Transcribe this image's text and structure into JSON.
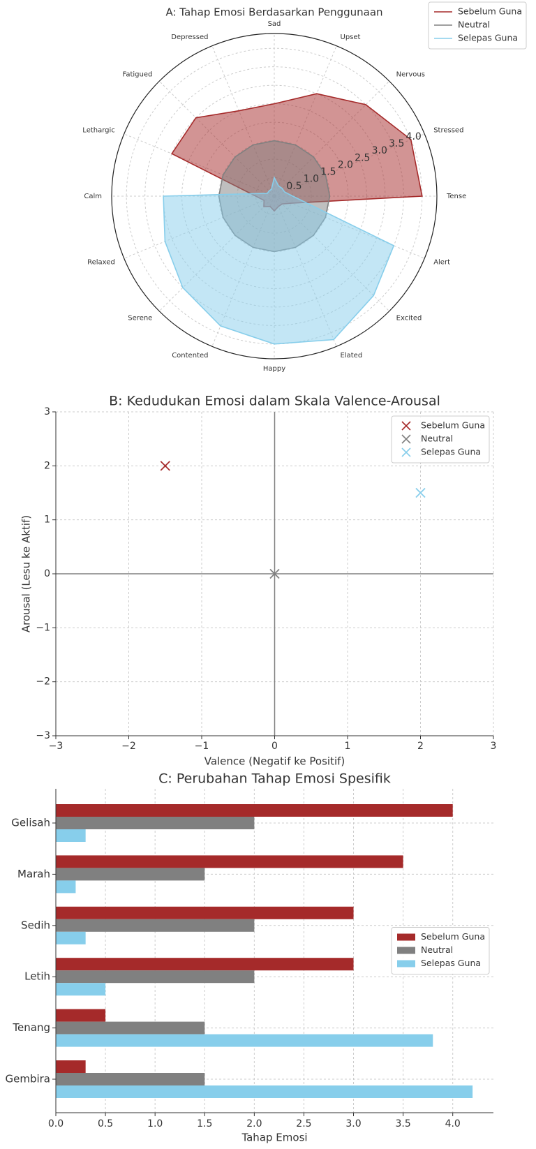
{
  "chart_data": [
    {
      "type": "radar",
      "title": "A: Tahap Emosi Berdasarkan Penggunaan",
      "categories": [
        "Tense",
        "Stressed",
        "Nervous",
        "Upset",
        "Sad",
        "Depressed",
        "Fatigued",
        "Lethargic",
        "Calm",
        "Relaxed",
        "Serene",
        "Contented",
        "Happy",
        "Elated",
        "Excited",
        "Alert"
      ],
      "series": [
        {
          "name": "Sebelum Guna",
          "color": "#a52a2a",
          "values": [
            4.0,
            4.0,
            3.5,
            3.0,
            2.5,
            2.5,
            3.0,
            3.0,
            0.5,
            0.3,
            0.4,
            0.3,
            0.4,
            0.3,
            0.3,
            0.5
          ]
        },
        {
          "name": "Neutral",
          "color": "#808080",
          "values": [
            1.5,
            1.5,
            1.5,
            1.5,
            1.5,
            1.5,
            1.5,
            1.5,
            1.5,
            1.5,
            1.5,
            1.5,
            1.5,
            1.5,
            1.5,
            1.5
          ]
        },
        {
          "name": "Selepas Guna",
          "color": "#87ceeb",
          "values": [
            0.5,
            0.3,
            0.3,
            0.3,
            0.5,
            0.2,
            0.2,
            0.2,
            3.0,
            3.2,
            3.5,
            3.8,
            4.0,
            4.2,
            3.8,
            3.5
          ]
        }
      ],
      "rlim": [
        0,
        4.4
      ],
      "rticks": [
        0.5,
        {
          "value": 1,
          "label": "1.0"
        },
        1.5,
        {
          "value": 2,
          "label": "2.0"
        },
        2.5,
        {
          "value": 3,
          "label": "3.0"
        },
        3.5,
        {
          "value": 4,
          "label": "4.0"
        }
      ],
      "grid": true,
      "legend": "upper right"
    },
    {
      "type": "scatter",
      "title": "B: Kedudukan Emosi dalam Skala Valence-Arousal",
      "xlabel": "Valence (Negatif ke Positif)",
      "ylabel": "Arousal (Lesu ke Aktif)",
      "series": [
        {
          "name": "Sebelum Guna",
          "color": "#a52a2a",
          "x": [
            -1.5
          ],
          "values": [
            2
          ]
        },
        {
          "name": "Neutral",
          "color": "#808080",
          "x": [
            0
          ],
          "values": [
            0
          ]
        },
        {
          "name": "Selepas Guna",
          "color": "#87ceeb",
          "x": [
            2
          ],
          "values": [
            1.5
          ]
        }
      ],
      "xlim": [
        -3,
        3
      ],
      "ylim": [
        -3,
        3
      ],
      "xticks": [
        {
          "value": -3,
          "label": "−3"
        },
        {
          "value": -2,
          "label": "−2"
        },
        {
          "value": -1,
          "label": "−1"
        },
        0,
        1,
        2,
        3
      ],
      "yticks": [
        {
          "value": -3,
          "label": "−3"
        },
        {
          "value": -2,
          "label": "−2"
        },
        {
          "value": -1,
          "label": "−1"
        },
        0,
        1,
        2,
        3
      ],
      "grid": true,
      "zero_lines": true,
      "legend": "upper right"
    },
    {
      "type": "hbar",
      "title": "C: Perubahan Tahap Emosi Spesifik",
      "xlabel": "Tahap Emosi",
      "categories": [
        "Gelisah",
        "Marah",
        "Sedih",
        "Letih",
        "Tenang",
        "Gembira"
      ],
      "series": [
        {
          "name": "Sebelum Guna",
          "color": "#a52a2a",
          "values": [
            4.0,
            3.5,
            3.0,
            3.0,
            0.5,
            0.3
          ]
        },
        {
          "name": "Neutral",
          "color": "#808080",
          "values": [
            2.0,
            1.5,
            2.0,
            2.0,
            1.5,
            1.5
          ]
        },
        {
          "name": "Selepas Guna",
          "color": "#87ceeb",
          "values": [
            0.3,
            0.2,
            0.3,
            0.5,
            3.8,
            4.2
          ]
        }
      ],
      "xlim": [
        0,
        4.41
      ],
      "xticks": [
        {
          "value": 0,
          "label": "0.0"
        },
        0.5,
        {
          "value": 1,
          "label": "1.0"
        },
        1.5,
        {
          "value": 2,
          "label": "2.0"
        },
        2.5,
        {
          "value": 3,
          "label": "3.0"
        },
        3.5,
        {
          "value": 4,
          "label": "4.0"
        }
      ],
      "grid": true,
      "legend": "center right"
    }
  ]
}
